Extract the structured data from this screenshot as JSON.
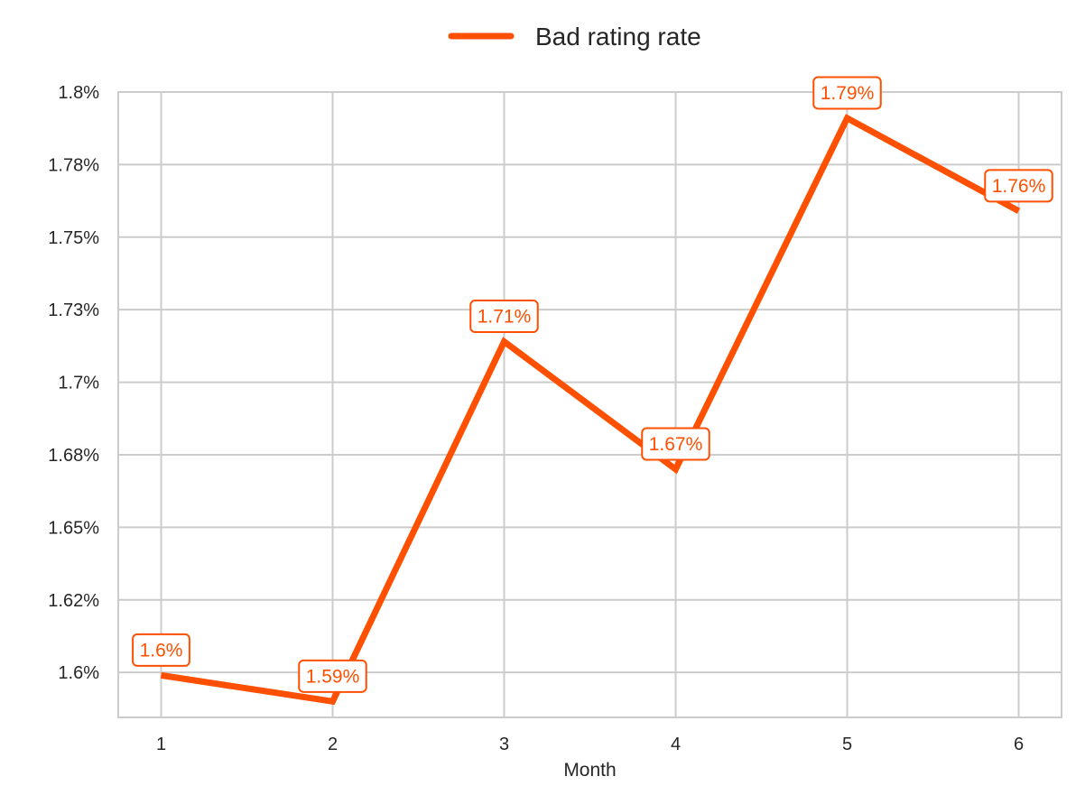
{
  "chart_data": {
    "type": "line",
    "title": "",
    "xlabel": "Month",
    "ylabel": "",
    "x": [
      1,
      2,
      3,
      4,
      5,
      6
    ],
    "x_tick_labels": [
      "1",
      "2",
      "3",
      "4",
      "5",
      "6"
    ],
    "xlim": [
      0.75,
      6.25
    ],
    "ylim": [
      1.5845,
      1.8
    ],
    "y_ticks": [
      1.6,
      1.625,
      1.65,
      1.675,
      1.7,
      1.725,
      1.75,
      1.775,
      1.8
    ],
    "y_tick_labels": [
      "1.6%",
      "1.62%",
      "1.65%",
      "1.68%",
      "1.7%",
      "1.73%",
      "1.75%",
      "1.78%",
      "1.8%"
    ],
    "grid": true,
    "legend_position": "top-center",
    "series": [
      {
        "name": "Bad rating rate",
        "color": "#FF4F00",
        "values": [
          1.599,
          1.59,
          1.714,
          1.67,
          1.791,
          1.759
        ],
        "data_labels": [
          "1.6%",
          "1.59%",
          "1.71%",
          "1.67%",
          "1.79%",
          "1.76%"
        ]
      }
    ]
  }
}
